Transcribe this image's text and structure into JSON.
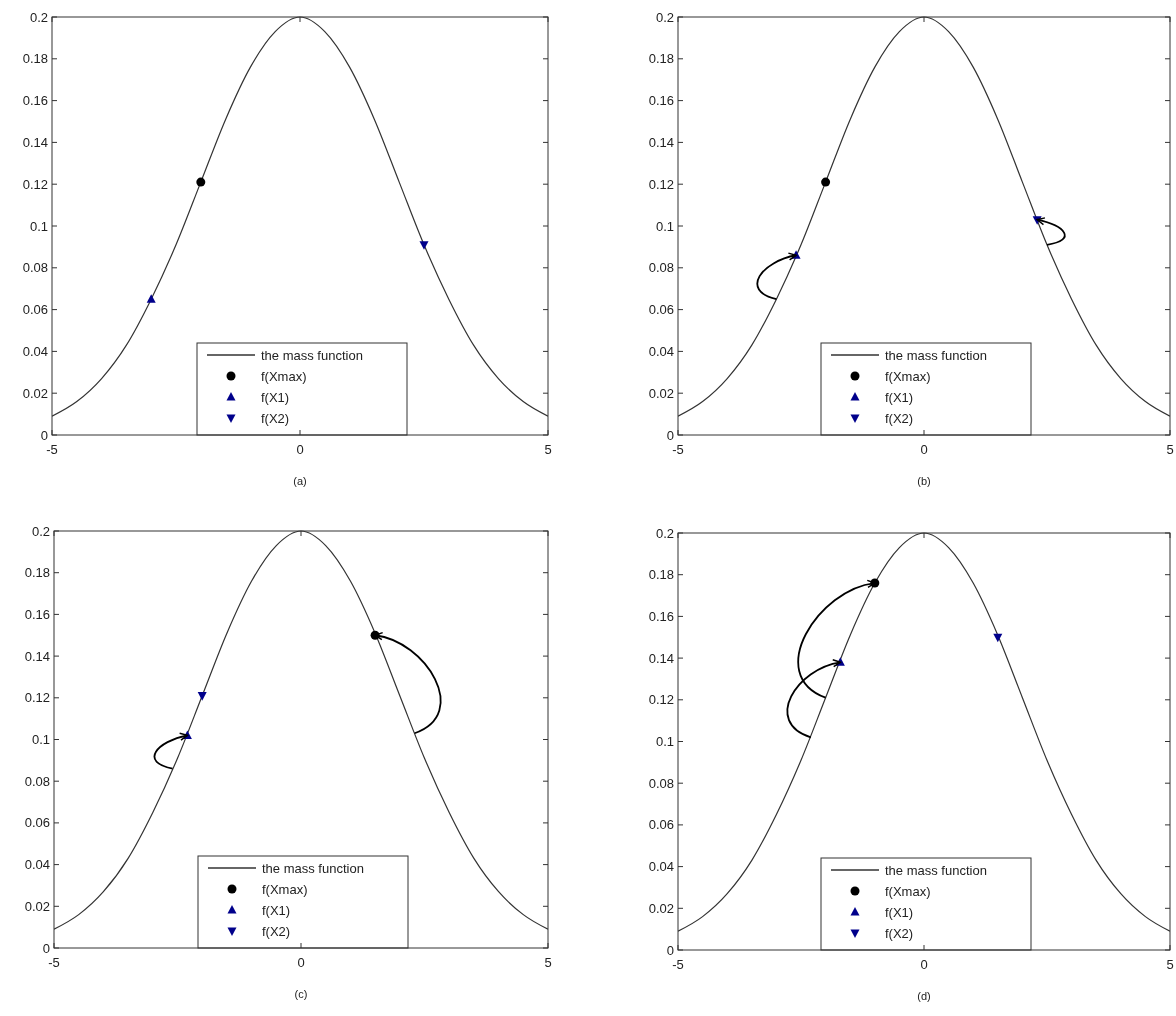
{
  "chart_data": [
    {
      "type": "line",
      "xlabel": "(a)",
      "xlim": [
        -5,
        5
      ],
      "xticks": [
        -5,
        0,
        5
      ],
      "ylim": [
        0,
        0.2
      ],
      "yticks": [
        0,
        0.02,
        0.04,
        0.06,
        0.08,
        0.1,
        0.12,
        0.14,
        0.16,
        0.18,
        0.2
      ],
      "legend": "bottom",
      "series": [
        {
          "name": "the mass function",
          "color": "#333333",
          "x": [
            -5,
            -4.5,
            -4,
            -3.5,
            -3,
            -2.5,
            -2,
            -1.5,
            -1,
            -0.5,
            0,
            0.5,
            1,
            1.5,
            2,
            2.5,
            3,
            3.5,
            4,
            4.5,
            5
          ],
          "values": [
            0.009,
            0.016,
            0.027,
            0.043,
            0.065,
            0.091,
            0.121,
            0.151,
            0.176,
            0.193,
            0.2,
            0.193,
            0.176,
            0.151,
            0.121,
            0.091,
            0.065,
            0.043,
            0.027,
            0.016,
            0.009
          ]
        },
        {
          "name": "f(Xmax)",
          "type": "scatter",
          "marker": "circle",
          "color": "#000000",
          "x": [
            -2.0
          ],
          "values": [
            0.121
          ]
        },
        {
          "name": "f(X1)",
          "type": "scatter",
          "marker": "triangle",
          "color": "#00008b",
          "x": [
            -3.0
          ],
          "values": [
            0.065
          ]
        },
        {
          "name": "f(X2)",
          "type": "scatter",
          "marker": "triangle-down",
          "color": "#00008b",
          "x": [
            2.5
          ],
          "values": [
            0.091
          ]
        }
      ]
    },
    {
      "type": "line",
      "xlabel": "(b)",
      "xlim": [
        -5,
        5
      ],
      "xticks": [
        -5,
        0,
        5
      ],
      "ylim": [
        0,
        0.2
      ],
      "yticks": [
        0,
        0.02,
        0.04,
        0.06,
        0.08,
        0.1,
        0.12,
        0.14,
        0.16,
        0.18,
        0.2
      ],
      "legend": "bottom",
      "series": [
        {
          "name": "the mass function",
          "color": "#333333",
          "x": [
            -5,
            -4.5,
            -4,
            -3.5,
            -3,
            -2.5,
            -2,
            -1.5,
            -1,
            -0.5,
            0,
            0.5,
            1,
            1.5,
            2,
            2.5,
            3,
            3.5,
            4,
            4.5,
            5
          ],
          "values": [
            0.009,
            0.016,
            0.027,
            0.043,
            0.065,
            0.091,
            0.121,
            0.151,
            0.176,
            0.193,
            0.2,
            0.193,
            0.176,
            0.151,
            0.121,
            0.091,
            0.065,
            0.043,
            0.027,
            0.016,
            0.009
          ]
        },
        {
          "name": "f(Xmax)",
          "type": "scatter",
          "marker": "circle",
          "color": "#000000",
          "x": [
            -2.0
          ],
          "values": [
            0.121
          ]
        },
        {
          "name": "f(X1)",
          "type": "scatter",
          "marker": "triangle",
          "color": "#00008b",
          "x": [
            -2.6
          ],
          "values": [
            0.086
          ]
        },
        {
          "name": "f(X2)",
          "type": "scatter",
          "marker": "triangle-down",
          "color": "#00008b",
          "x": [
            2.3
          ],
          "values": [
            0.103
          ]
        }
      ]
    },
    {
      "type": "line",
      "xlabel": "(c)",
      "xlim": [
        -5,
        5
      ],
      "xticks": [
        -5,
        0,
        5
      ],
      "ylim": [
        0,
        0.2
      ],
      "yticks": [
        0,
        0.02,
        0.04,
        0.06,
        0.08,
        0.1,
        0.12,
        0.14,
        0.16,
        0.18,
        0.2
      ],
      "legend": "bottom",
      "series": [
        {
          "name": "the mass function",
          "color": "#333333",
          "x": [
            -5,
            -4.5,
            -4,
            -3.5,
            -3,
            -2.5,
            -2,
            -1.5,
            -1,
            -0.5,
            0,
            0.5,
            1,
            1.5,
            2,
            2.5,
            3,
            3.5,
            4,
            4.5,
            5
          ],
          "values": [
            0.009,
            0.016,
            0.027,
            0.043,
            0.065,
            0.091,
            0.121,
            0.151,
            0.176,
            0.193,
            0.2,
            0.193,
            0.176,
            0.151,
            0.121,
            0.091,
            0.065,
            0.043,
            0.027,
            0.016,
            0.009
          ]
        },
        {
          "name": "f(Xmax)",
          "type": "scatter",
          "marker": "circle",
          "color": "#000000",
          "x": [
            1.5
          ],
          "values": [
            0.15
          ]
        },
        {
          "name": "f(X1)",
          "type": "scatter",
          "marker": "triangle",
          "color": "#00008b",
          "x": [
            -2.3
          ],
          "values": [
            0.102
          ]
        },
        {
          "name": "f(X2)",
          "type": "scatter",
          "marker": "triangle-down",
          "color": "#00008b",
          "x": [
            -2.0
          ],
          "values": [
            0.121
          ]
        }
      ]
    },
    {
      "type": "line",
      "xlabel": "(d)",
      "xlim": [
        -5,
        5
      ],
      "xticks": [
        -5,
        0,
        5
      ],
      "ylim": [
        0,
        0.2
      ],
      "yticks": [
        0,
        0.02,
        0.04,
        0.06,
        0.08,
        0.1,
        0.12,
        0.14,
        0.16,
        0.18,
        0.2
      ],
      "legend": "bottom",
      "series": [
        {
          "name": "the mass function",
          "color": "#333333",
          "x": [
            -5,
            -4.5,
            -4,
            -3.5,
            -3,
            -2.5,
            -2,
            -1.5,
            -1,
            -0.5,
            0,
            0.5,
            1,
            1.5,
            2,
            2.5,
            3,
            3.5,
            4,
            4.5,
            5
          ],
          "values": [
            0.009,
            0.016,
            0.027,
            0.043,
            0.065,
            0.091,
            0.121,
            0.151,
            0.176,
            0.193,
            0.2,
            0.193,
            0.176,
            0.151,
            0.121,
            0.091,
            0.065,
            0.043,
            0.027,
            0.016,
            0.009
          ]
        },
        {
          "name": "f(Xmax)",
          "type": "scatter",
          "marker": "circle",
          "color": "#000000",
          "x": [
            -1.0
          ],
          "values": [
            0.176
          ]
        },
        {
          "name": "f(X1)",
          "type": "scatter",
          "marker": "triangle",
          "color": "#00008b",
          "x": [
            -1.7
          ],
          "values": [
            0.138
          ]
        },
        {
          "name": "f(X2)",
          "type": "scatter",
          "marker": "triangle-down",
          "color": "#00008b",
          "x": [
            1.5
          ],
          "values": [
            0.15
          ]
        }
      ]
    }
  ]
}
